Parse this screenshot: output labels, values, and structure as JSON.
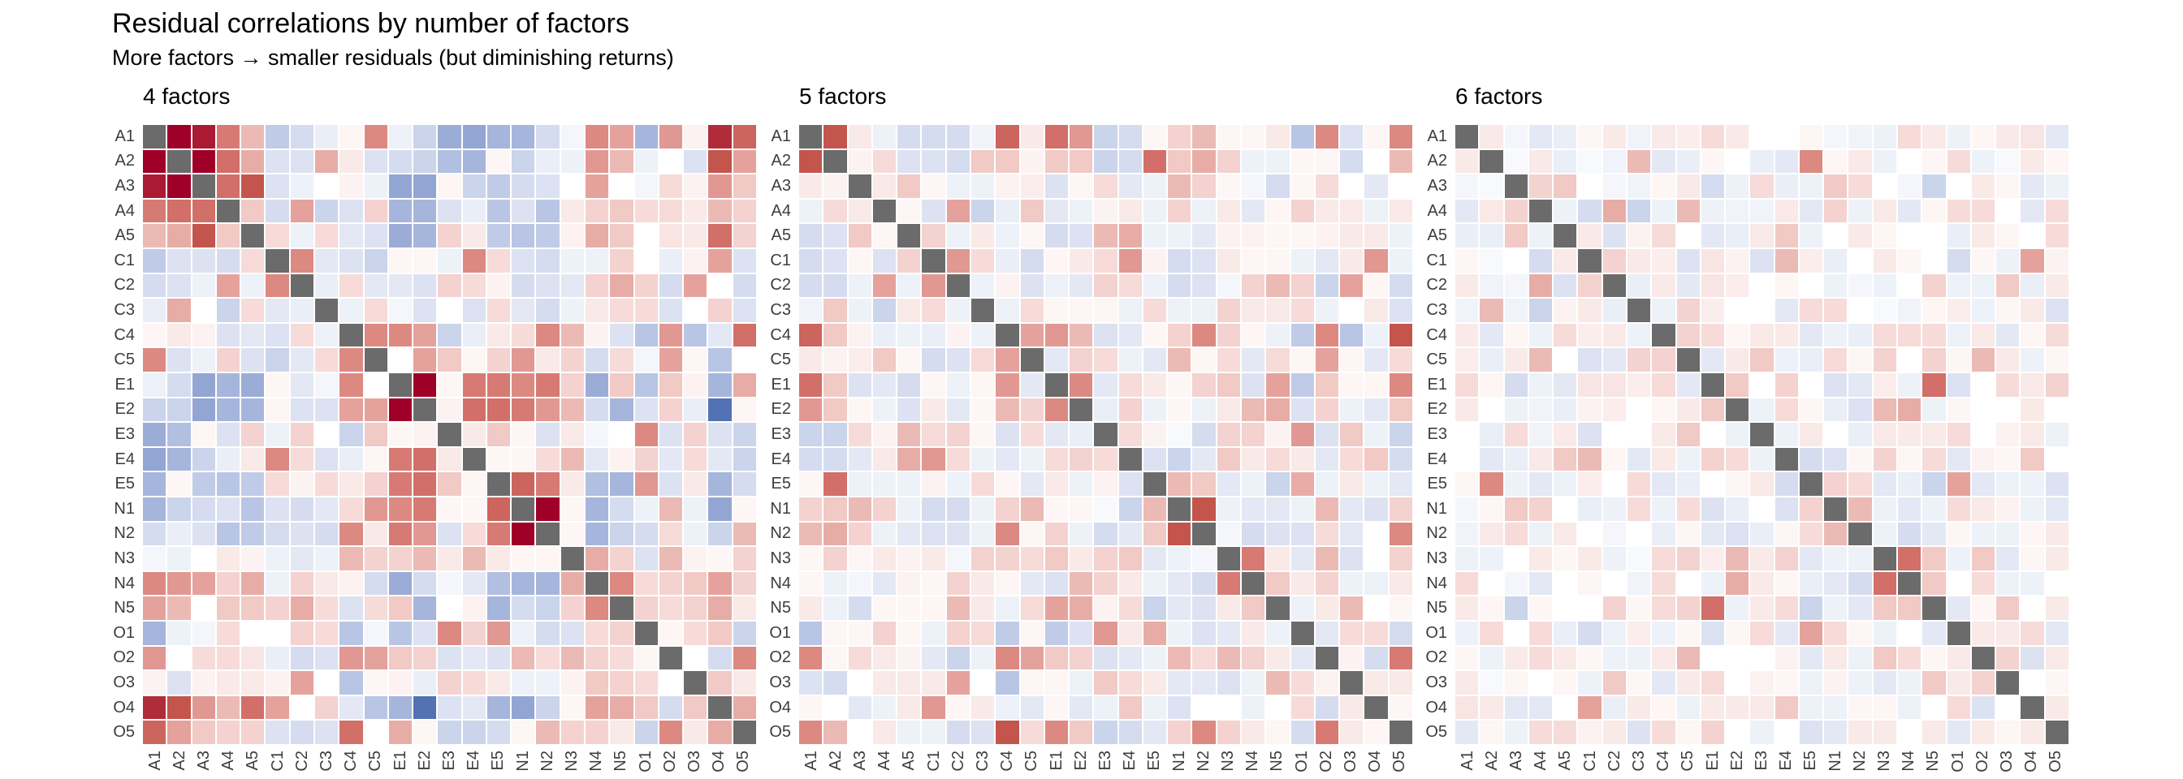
{
  "title": "Residual correlations by number of factors",
  "subtitle": "More factors → smaller residuals (but diminishing returns)",
  "chart_data": {
    "type": "heatmap",
    "description": "Three 25x25 symmetric residual-correlation heatmaps; diagonal cells are gray; red = positive residual correlation, blue = negative",
    "variables": [
      "A1",
      "A2",
      "A3",
      "A4",
      "A5",
      "C1",
      "C2",
      "C3",
      "C4",
      "C5",
      "E1",
      "E2",
      "E3",
      "E4",
      "E5",
      "N1",
      "N2",
      "N3",
      "N4",
      "N5",
      "O1",
      "O2",
      "O3",
      "O4",
      "O5"
    ],
    "storage": "upper_triangle_symmetric",
    "legend": "none",
    "grid": "white gaps between cells",
    "colormap": {
      "scale_max": 0.45,
      "diagonal_color": "#6b6b6b",
      "positive_stops": [
        "#ffffff",
        "#f5d7d4",
        "#e8aca6",
        "#d97f78",
        "#c05048",
        "#9f0028"
      ],
      "negative_stops": [
        "#ffffff",
        "#dfe5f3",
        "#c0cbe7",
        "#9fafd8",
        "#7b90c7",
        "#5272b4"
      ]
    },
    "panels": [
      {
        "title": "4 factors",
        "n_factors": 4,
        "matrix_upper": [
          [
            0.5,
            0.42,
            0.28,
            0.15,
            -0.18,
            -0.12,
            -0.06,
            0.02,
            0.25,
            -0.05,
            -0.15,
            -0.28,
            -0.3,
            -0.25,
            -0.25,
            -0.12,
            -0.03,
            0.25,
            0.2,
            -0.25,
            0.22,
            0.03,
            0.4,
            0.32
          ],
          [
            0.45,
            0.3,
            0.18,
            -0.1,
            -0.1,
            0.18,
            0.05,
            -0.1,
            -0.12,
            -0.15,
            -0.22,
            -0.25,
            0.02,
            -0.15,
            -0.06,
            -0.05,
            0.22,
            0.15,
            -0.05,
            0,
            -0.1,
            0.35,
            0.2
          ],
          [
            0.3,
            0.35,
            -0.1,
            -0.05,
            0,
            0.03,
            -0.05,
            -0.3,
            -0.3,
            0.02,
            -0.15,
            -0.18,
            -0.12,
            -0.1,
            0,
            0.2,
            0,
            -0.03,
            0.08,
            0.03,
            0.22,
            0.12
          ],
          [
            0.12,
            -0.12,
            0.2,
            -0.15,
            -0.1,
            0.1,
            -0.25,
            -0.25,
            -0.1,
            -0.06,
            -0.2,
            -0.1,
            -0.2,
            0.05,
            0.1,
            0.12,
            0.08,
            0.08,
            0.05,
            0.15,
            0.1
          ],
          [
            0.08,
            -0.05,
            0.08,
            -0.08,
            -0.1,
            -0.28,
            -0.25,
            0.1,
            0.05,
            -0.18,
            -0.2,
            -0.18,
            0.03,
            0.18,
            0.12,
            0,
            0.06,
            0.05,
            0.3,
            0.1
          ],
          [
            0.25,
            -0.08,
            -0.1,
            -0.15,
            0.02,
            0.02,
            -0.05,
            0.25,
            0.08,
            -0.1,
            -0.12,
            -0.05,
            -0.05,
            0.1,
            0,
            -0.06,
            0.03,
            0.2,
            -0.1
          ],
          [
            -0.06,
            0.08,
            -0.08,
            -0.08,
            -0.1,
            0.1,
            0.08,
            0.03,
            -0.12,
            -0.1,
            -0.08,
            0.1,
            0.18,
            0.1,
            -0.12,
            0.2,
            0,
            -0.12
          ],
          [
            -0.05,
            0.08,
            -0.03,
            -0.1,
            0,
            -0.1,
            0.08,
            -0.08,
            -0.12,
            -0.05,
            0.05,
            0.08,
            0.08,
            -0.1,
            0,
            0.1,
            -0.1
          ],
          [
            0.25,
            0.25,
            0.2,
            -0.15,
            -0.06,
            0.05,
            0.08,
            0.25,
            0.15,
            0.03,
            -0.1,
            -0.2,
            0.22,
            -0.2,
            -0.08,
            0.3
          ],
          [
            0,
            0.2,
            0.12,
            0.02,
            0.1,
            0.22,
            0.05,
            0.1,
            -0.12,
            0.08,
            -0.03,
            0.2,
            0.02,
            -0.2,
            0
          ],
          [
            0.5,
            0.02,
            0.28,
            0.28,
            0.25,
            0.28,
            0.1,
            -0.28,
            0.12,
            -0.2,
            0.12,
            0.03,
            -0.25,
            0.18
          ],
          [
            0.03,
            0.3,
            0.3,
            0.28,
            0.22,
            0.15,
            -0.12,
            -0.25,
            -0.1,
            0.1,
            -0.06,
            -0.45,
            0.02
          ],
          [
            0.05,
            0.12,
            0.02,
            -0.1,
            0.05,
            -0.03,
            0,
            0.25,
            -0.1,
            0.1,
            -0.1,
            -0.15
          ],
          [
            0.02,
            0.02,
            0.08,
            0.15,
            -0.08,
            0.03,
            0.1,
            -0.08,
            0.08,
            -0.08,
            -0.15
          ],
          [
            0.32,
            0.28,
            0.05,
            -0.22,
            -0.25,
            0.22,
            -0.1,
            0.05,
            -0.25,
            -0.12
          ],
          [
            0.5,
            0.02,
            -0.25,
            -0.12,
            -0.05,
            0.15,
            -0.05,
            -0.3,
            0.02
          ],
          [
            0.02,
            -0.25,
            -0.15,
            -0.12,
            0.08,
            -0.05,
            -0.15,
            0.15
          ],
          [
            0.18,
            0.1,
            -0.1,
            0.15,
            0.03,
            0.02,
            0.1
          ],
          [
            0.25,
            0.08,
            0.1,
            0.12,
            0.2,
            0.1
          ],
          [
            0.1,
            0.08,
            0.1,
            0.18,
            0.05
          ],
          [
            0.02,
            0.08,
            0.12,
            -0.15
          ],
          [
            0,
            -0.12,
            0.25
          ],
          [
            0.12,
            0.05
          ],
          [
            0.18
          ]
        ]
      },
      {
        "title": "5 factors",
        "n_factors": 5,
        "matrix_upper": [
          [
            0.35,
            0.05,
            -0.05,
            -0.12,
            -0.12,
            -0.12,
            -0.04,
            0.32,
            0.05,
            0.3,
            0.22,
            -0.15,
            -0.12,
            0.02,
            0.1,
            0.15,
            0.02,
            0.02,
            0.05,
            -0.2,
            0.25,
            -0.1,
            0.02,
            0.25
          ],
          [
            0.03,
            0.08,
            -0.1,
            -0.1,
            -0.12,
            0.12,
            0.12,
            0.03,
            0.12,
            0.12,
            -0.15,
            -0.12,
            0.3,
            0.12,
            0.18,
            0.1,
            -0.05,
            -0.05,
            0.02,
            0.02,
            -0.12,
            0,
            0.15
          ],
          [
            0.05,
            0.12,
            0.02,
            -0.05,
            -0.05,
            0.03,
            0.04,
            -0.1,
            0.02,
            0.08,
            -0.08,
            -0.05,
            0.15,
            0.1,
            0.02,
            -0.03,
            -0.12,
            0.02,
            0.08,
            0,
            -0.08,
            0
          ],
          [
            0.02,
            -0.1,
            0.2,
            -0.15,
            -0.06,
            0.12,
            -0.08,
            -0.05,
            0.03,
            0.05,
            -0.05,
            0.1,
            -0.05,
            0.05,
            -0.08,
            0.02,
            0.1,
            0.05,
            0.05,
            -0.05,
            0.05
          ],
          [
            0.1,
            -0.05,
            0.05,
            -0.05,
            0.02,
            -0.12,
            -0.1,
            0.15,
            0.18,
            -0.05,
            -0.05,
            -0.08,
            0.03,
            0.03,
            0.02,
            0.02,
            0.03,
            0.05,
            0.05,
            -0.05
          ],
          [
            0.22,
            0.08,
            -0.06,
            -0.12,
            0.02,
            0.05,
            0.08,
            0.22,
            0.03,
            -0.12,
            -0.1,
            0.05,
            0.02,
            0.02,
            -0.05,
            -0.08,
            0.05,
            0.22,
            -0.05
          ],
          [
            -0.05,
            0.03,
            -0.1,
            -0.05,
            -0.08,
            0.1,
            0.08,
            -0.05,
            -0.12,
            -0.1,
            -0.03,
            0.1,
            0.15,
            0.1,
            -0.15,
            0.2,
            0.02,
            -0.12
          ],
          [
            -0.05,
            0.08,
            0.02,
            0.02,
            0.02,
            -0.05,
            0.08,
            -0.05,
            -0.05,
            0.1,
            0.05,
            0.05,
            0.08,
            -0.05,
            0,
            0.05,
            -0.1
          ],
          [
            0.2,
            0.22,
            0.15,
            -0.1,
            -0.08,
            0.02,
            0.1,
            0.25,
            0.1,
            0.02,
            -0.05,
            -0.18,
            0.25,
            -0.2,
            -0.05,
            0.35
          ],
          [
            -0.08,
            0.1,
            0.08,
            -0.05,
            -0.08,
            0.15,
            0.02,
            0.08,
            -0.08,
            0.08,
            0.02,
            0.2,
            0.02,
            -0.08,
            0.08
          ],
          [
            0.25,
            -0.08,
            0.08,
            0.05,
            0.02,
            0.1,
            0.12,
            -0.1,
            0.2,
            -0.18,
            0.12,
            0.02,
            0.02,
            0.25
          ],
          [
            -0.06,
            0.1,
            -0.05,
            0.02,
            -0.05,
            0.05,
            0.15,
            0.18,
            -0.1,
            0.1,
            -0.05,
            -0.08,
            0.12
          ],
          [
            0.08,
            0.03,
            -0.02,
            -0.12,
            0.1,
            0.1,
            0.03,
            0.22,
            -0.1,
            0.12,
            -0.05,
            -0.15
          ],
          [
            -0.1,
            -0.15,
            -0.08,
            0.12,
            0.05,
            0.08,
            0.05,
            -0.08,
            0.08,
            0.12,
            -0.12
          ],
          [
            0.15,
            0.12,
            -0.08,
            -0.05,
            -0.15,
            0.18,
            -0.05,
            0.05,
            -0.05,
            -0.08
          ],
          [
            0.35,
            -0.05,
            -0.08,
            -0.08,
            -0.05,
            0.15,
            -0.08,
            -0.1,
            0.1
          ],
          [
            -0.03,
            -0.12,
            -0.1,
            -0.1,
            0.08,
            -0.08,
            0,
            0.25
          ],
          [
            0.28,
            0.05,
            -0.08,
            0.15,
            -0.1,
            0,
            0.1
          ],
          [
            0.12,
            0.05,
            0.1,
            -0.05,
            -0.05,
            0.05
          ],
          [
            -0.05,
            0.05,
            0.15,
            0,
            0.02
          ],
          [
            -0.08,
            0.08,
            0.08,
            -0.12
          ],
          [
            0.03,
            -0.12,
            0.28
          ],
          [
            0.05,
            0.05
          ],
          [
            0.02
          ]
        ]
      },
      {
        "title": "6 factors",
        "n_factors": 6,
        "matrix_upper": [
          [
            0.05,
            -0.03,
            -0.08,
            -0.06,
            0.02,
            0.05,
            -0.04,
            0.05,
            0.04,
            0.08,
            0.05,
            0,
            0,
            0.02,
            -0.03,
            -0.04,
            -0.05,
            0.08,
            0.05,
            -0.05,
            0.02,
            0.05,
            0.06,
            -0.08
          ],
          [
            -0.02,
            0.05,
            -0.06,
            -0.02,
            -0.04,
            0.15,
            -0.08,
            -0.06,
            0.02,
            0,
            -0.06,
            -0.08,
            0.25,
            0.02,
            0.05,
            -0.05,
            0,
            0.02,
            0.08,
            -0.05,
            -0.02,
            0.05,
            0.02
          ],
          [
            0.1,
            0.12,
            0,
            -0.03,
            -0.04,
            0.02,
            0.05,
            -0.12,
            -0.05,
            0.08,
            -0.06,
            -0.05,
            0.12,
            0.08,
            0,
            -0.03,
            -0.15,
            0,
            0.05,
            0.02,
            -0.08,
            -0.05
          ],
          [
            -0.05,
            -0.12,
            0.18,
            -0.15,
            -0.05,
            0.15,
            -0.05,
            -0.04,
            -0.04,
            0.05,
            -0.08,
            0.1,
            -0.05,
            0.05,
            -0.08,
            0.02,
            0.08,
            0.08,
            0,
            -0.08,
            0.08
          ],
          [
            0.05,
            -0.1,
            0.03,
            0.08,
            0,
            -0.08,
            -0.06,
            0.05,
            0.12,
            -0.05,
            0,
            0.05,
            0.02,
            0,
            0,
            -0.06,
            0.05,
            0.02,
            0,
            0.08
          ],
          [
            0.1,
            0.05,
            0.04,
            -0.1,
            0.06,
            0.03,
            -0.1,
            0.15,
            0.04,
            -0.06,
            0,
            0.05,
            0.02,
            0,
            -0.12,
            0.02,
            -0.05,
            0.2,
            0.03
          ],
          [
            -0.06,
            0.05,
            -0.08,
            0.06,
            0.04,
            0,
            0.02,
            0,
            -0.05,
            -0.03,
            -0.05,
            0,
            0.1,
            -0.05,
            -0.05,
            0.12,
            -0.06,
            0.05
          ],
          [
            -0.05,
            0.1,
            0.04,
            0,
            0,
            -0.08,
            0.08,
            0.08,
            0,
            -0.02,
            -0.04,
            0.02,
            0.04,
            -0.05,
            0.02,
            0.05,
            -0.1
          ],
          [
            0.1,
            0.08,
            0.02,
            0.05,
            0.05,
            -0.08,
            -0.05,
            -0.06,
            0.08,
            0.08,
            0.08,
            -0.05,
            0.05,
            -0.08,
            0.02,
            0.08
          ],
          [
            -0.08,
            0.05,
            0.12,
            -0.05,
            -0.06,
            0.08,
            0.02,
            0.1,
            0,
            0.1,
            0.02,
            0.15,
            0.05,
            -0.05,
            0.02
          ],
          [
            0.12,
            0,
            0.1,
            0,
            -0.1,
            -0.08,
            0.04,
            -0.05,
            0.3,
            -0.1,
            0,
            0.08,
            0.05,
            0.1
          ],
          [
            -0.05,
            0.08,
            0.02,
            -0.06,
            -0.1,
            0.15,
            0.18,
            -0.05,
            0.02,
            0,
            0,
            0.05,
            0
          ],
          [
            -0.05,
            0.05,
            0,
            -0.06,
            0.05,
            0.05,
            0.05,
            0.08,
            0,
            0.03,
            0.05,
            -0.05
          ],
          [
            -0.12,
            -0.1,
            0.02,
            0.1,
            0.02,
            0.08,
            -0.08,
            0.03,
            0.02,
            0.12,
            0
          ],
          [
            0.1,
            0.08,
            -0.08,
            -0.06,
            -0.15,
            0.2,
            -0.08,
            -0.05,
            -0.05,
            -0.1
          ],
          [
            0.15,
            -0.05,
            -0.08,
            -0.05,
            0.08,
            0.05,
            0.03,
            -0.05,
            -0.08
          ],
          [
            -0.05,
            -0.12,
            -0.08,
            0.02,
            -0.05,
            -0.05,
            0.02,
            0.05
          ],
          [
            0.3,
            0.12,
            -0.05,
            0.12,
            -0.08,
            0.02,
            0.05
          ],
          [
            0.12,
            0,
            0.08,
            -0.05,
            -0.05,
            0
          ],
          [
            -0.08,
            0.02,
            0.12,
            0,
            0.05
          ],
          [
            0.05,
            0.05,
            0.08,
            -0.08
          ],
          [
            0.1,
            -0.1,
            0.05
          ],
          [
            0,
            0.02
          ],
          [
            0.05
          ]
        ]
      }
    ]
  }
}
